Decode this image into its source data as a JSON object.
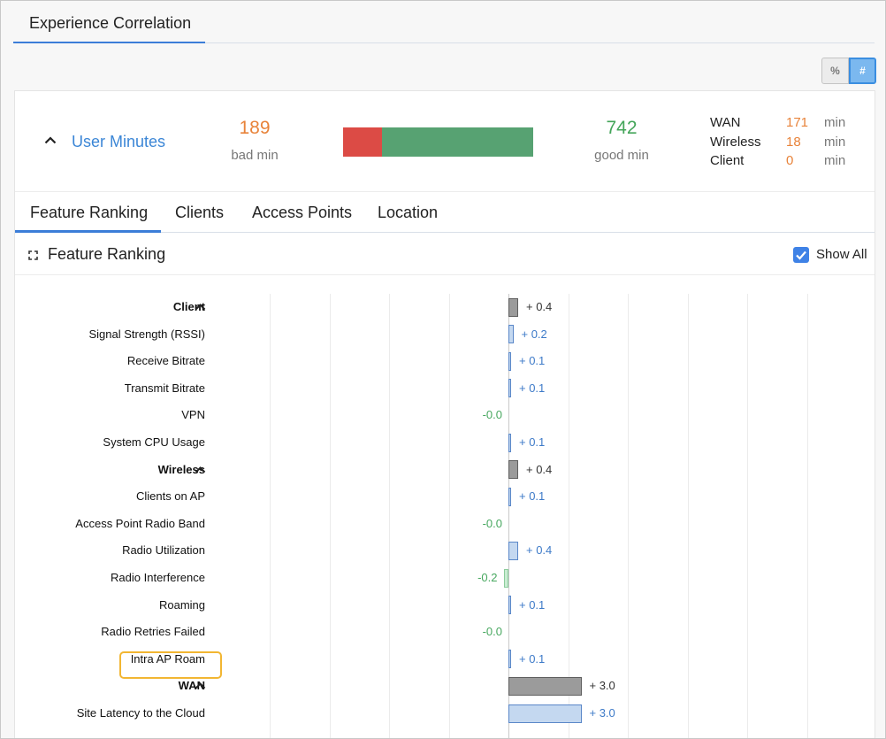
{
  "top_tab": {
    "label": "Experience Correlation"
  },
  "toggle": {
    "percent_label": "%",
    "count_label": "#",
    "active": "#"
  },
  "summary": {
    "title": "User Minutes",
    "bad_value": "189",
    "bad_label": "bad min",
    "good_value": "742",
    "good_label": "good min",
    "bad_fraction": 0.203,
    "colors": {
      "bad": "#dc4b45",
      "good": "#57a272"
    },
    "breakdown": [
      {
        "name": "WAN",
        "value": "171",
        "unit": "min"
      },
      {
        "name": "Wireless",
        "value": "18",
        "unit": "min"
      },
      {
        "name": "Client",
        "value": "0",
        "unit": "min"
      }
    ]
  },
  "sub_tabs": [
    "Feature Ranking",
    "Clients",
    "Access Points",
    "Location"
  ],
  "active_sub_tab": "Feature Ranking",
  "feature_ranking": {
    "title": "Feature Ranking",
    "show_all_label": "Show All",
    "show_all_checked": true
  },
  "chart_data": {
    "type": "bar",
    "orientation": "horizontal",
    "xlim": [
      -3.0,
      3.0
    ],
    "rows": [
      {
        "label": "Client",
        "value": 0.4,
        "display": "+ 0.4",
        "kind": "group"
      },
      {
        "label": "Signal Strength (RSSI)",
        "value": 0.2,
        "display": "+ 0.2",
        "kind": "item"
      },
      {
        "label": "Receive Bitrate",
        "value": 0.1,
        "display": "+ 0.1",
        "kind": "item"
      },
      {
        "label": "Transmit Bitrate",
        "value": 0.1,
        "display": "+ 0.1",
        "kind": "item"
      },
      {
        "label": "VPN",
        "value": -0.0,
        "display": "-0.0",
        "kind": "item"
      },
      {
        "label": "System CPU Usage",
        "value": 0.1,
        "display": "+ 0.1",
        "kind": "item"
      },
      {
        "label": "Wireless",
        "value": 0.4,
        "display": "+ 0.4",
        "kind": "group"
      },
      {
        "label": "Clients on AP",
        "value": 0.1,
        "display": "+ 0.1",
        "kind": "item"
      },
      {
        "label": "Access Point Radio Band",
        "value": -0.0,
        "display": "-0.0",
        "kind": "item"
      },
      {
        "label": "Radio Utilization",
        "value": 0.4,
        "display": "+ 0.4",
        "kind": "item"
      },
      {
        "label": "Radio Interference",
        "value": -0.2,
        "display": "-0.2",
        "kind": "item"
      },
      {
        "label": "Roaming",
        "value": 0.1,
        "display": "+ 0.1",
        "kind": "item"
      },
      {
        "label": "Radio Retries Failed",
        "value": -0.0,
        "display": "-0.0",
        "kind": "item"
      },
      {
        "label": "Intra AP Roam",
        "value": 0.1,
        "display": "+ 0.1",
        "kind": "item",
        "highlighted": true
      },
      {
        "label": "WAN",
        "value": 3.0,
        "display": "+ 3.0",
        "kind": "group"
      },
      {
        "label": "Site Latency to the Cloud",
        "value": 3.0,
        "display": "+ 3.0",
        "kind": "item"
      }
    ]
  }
}
